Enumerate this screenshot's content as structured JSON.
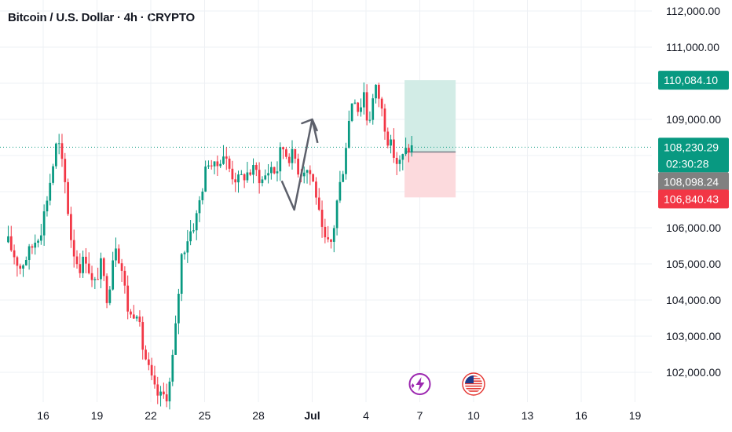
{
  "header": {
    "title": "Bitcoin / U.S. Dollar · 4h · CRYPTO"
  },
  "colors": {
    "up": "#089981",
    "down": "#f23645",
    "gray": "#808080",
    "tp_fill": "#d2ece6",
    "sl_fill": "#fcdadd",
    "current_line": "#089981"
  },
  "chart_data": {
    "type": "candlestick",
    "title": "Bitcoin / U.S. Dollar · 4h · CRYPTO",
    "ylim": [
      101400,
      112000
    ],
    "y_ticks": [
      "112,000.00",
      "111,000.00",
      "110,000.00",
      "109,000.00",
      "108,000.00",
      "107,000.00",
      "106,000.00",
      "105,000.00",
      "104,000.00",
      "103,000.00",
      "102,000.00"
    ],
    "y_tick_values": [
      112000,
      111000,
      110000,
      109000,
      108000,
      107000,
      106000,
      105000,
      104000,
      103000,
      102000
    ],
    "x_ticks": [
      {
        "label": "16",
        "bold": false
      },
      {
        "label": "19",
        "bold": false
      },
      {
        "label": "22",
        "bold": false
      },
      {
        "label": "25",
        "bold": false
      },
      {
        "label": "28",
        "bold": false
      },
      {
        "label": "Jul",
        "bold": true
      },
      {
        "label": "4",
        "bold": false
      },
      {
        "label": "7",
        "bold": false
      },
      {
        "label": "10",
        "bold": false
      },
      {
        "label": "13",
        "bold": false
      },
      {
        "label": "16",
        "bold": false
      },
      {
        "label": "19",
        "bold": false
      }
    ],
    "x_tick_day_index": [
      0,
      3,
      6,
      9,
      12,
      15,
      18,
      21,
      24,
      27,
      30,
      33
    ],
    "x_start_day": -1.95,
    "candle_anchors": [
      [
        -1.95,
        105600
      ],
      [
        -1.3,
        104900
      ],
      [
        -0.7,
        105400
      ],
      [
        -0.1,
        106000
      ],
      [
        0.5,
        107600
      ],
      [
        0.8,
        108500
      ],
      [
        1.2,
        107300
      ],
      [
        1.6,
        105500
      ],
      [
        2.0,
        104900
      ],
      [
        2.4,
        105200
      ],
      [
        2.8,
        104300
      ],
      [
        3.2,
        105000
      ],
      [
        3.6,
        104000
      ],
      [
        4.0,
        105700
      ],
      [
        4.4,
        104800
      ],
      [
        4.8,
        103500
      ],
      [
        5.2,
        103800
      ],
      [
        5.5,
        102800
      ],
      [
        5.8,
        102200
      ],
      [
        6.2,
        101500
      ],
      [
        6.5,
        101300
      ],
      [
        6.9,
        101400
      ],
      [
        7.1,
        101800
      ],
      [
        7.4,
        103300
      ],
      [
        7.7,
        105200
      ],
      [
        8.1,
        105800
      ],
      [
        8.5,
        106200
      ],
      [
        8.9,
        107200
      ],
      [
        9.2,
        107900
      ],
      [
        9.6,
        107600
      ],
      [
        10.0,
        108100
      ],
      [
        10.5,
        107500
      ],
      [
        10.9,
        107300
      ],
      [
        11.3,
        107500
      ],
      [
        11.8,
        107600
      ],
      [
        12.2,
        107300
      ],
      [
        12.7,
        107700
      ],
      [
        13.0,
        107500
      ],
      [
        13.3,
        108300
      ],
      [
        13.6,
        108000
      ],
      [
        14.0,
        108000
      ],
      [
        14.3,
        107500
      ],
      [
        14.6,
        107700
      ],
      [
        14.9,
        107500
      ],
      [
        15.2,
        107000
      ],
      [
        15.5,
        105900
      ],
      [
        15.8,
        105500
      ],
      [
        16.1,
        105600
      ],
      [
        16.4,
        106800
      ],
      [
        16.7,
        107600
      ],
      [
        17.0,
        108800
      ],
      [
        17.3,
        109800
      ],
      [
        17.6,
        109200
      ],
      [
        17.9,
        109800
      ],
      [
        18.1,
        108800
      ],
      [
        18.4,
        109600
      ],
      [
        18.6,
        109900
      ],
      [
        18.9,
        109200
      ],
      [
        19.2,
        108500
      ],
      [
        19.5,
        108100
      ],
      [
        19.8,
        107700
      ],
      [
        20.0,
        107900
      ],
      [
        20.2,
        108100
      ],
      [
        20.4,
        108200
      ],
      [
        20.6,
        108230
      ]
    ],
    "annotations": {
      "pattern_path": [
        [
          13.3,
          107300
        ],
        [
          14.0,
          106500
        ],
        [
          15.0,
          109000
        ],
        [
          15.3,
          108350
        ]
      ],
      "position_tool": {
        "start_day": 20.15,
        "end_day": 23.0,
        "entry": 108098.24,
        "take_profit": 110084.1,
        "stop_loss": 106840.43
      },
      "current_price": 108230.29,
      "countdown": "02:30:28"
    },
    "price_labels": [
      {
        "id": "tp",
        "text": "110,084.10",
        "value": 110084.1,
        "color": "#089981"
      },
      {
        "id": "current",
        "text": "108,230.29",
        "value": 108230.29,
        "color": "#089981",
        "sub": "02:30:28"
      },
      {
        "id": "entry",
        "text": "108,098.24",
        "value": 108098.24,
        "color": "#808080"
      },
      {
        "id": "sl",
        "text": "106,840.43",
        "value": 106840.43,
        "color": "#f23645"
      }
    ],
    "event_icons": [
      {
        "name": "lightning-event-icon",
        "day": 21.0
      },
      {
        "name": "us-flag-event-icon",
        "day": 24.0
      }
    ]
  }
}
